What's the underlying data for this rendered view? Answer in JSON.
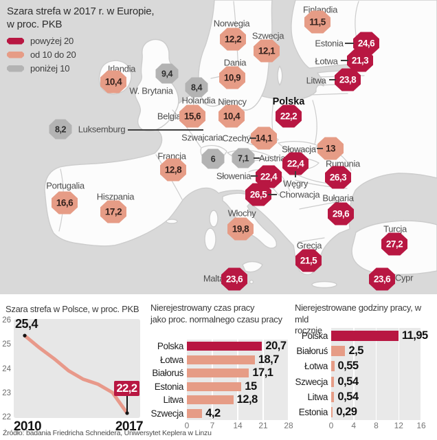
{
  "source": "Źródło: badania Friedricha Schneidera, Uniwersytet Keplera w Linzu",
  "colors": {
    "high": "#b81742",
    "mid": "#e69c86",
    "low": "#b3b3b3",
    "sea": "#d9d9d9",
    "land": "#fcfcfc",
    "plot_bg": "#e7e7e7",
    "line": "#e8998a"
  },
  "chart_data": [
    {
      "type": "map-values",
      "title": "Szara strefa w 2017 r. w Europie, w proc. PKB",
      "title_lines": [
        "Szara strefa w 2017 r. w Europie,",
        "w proc. PKB"
      ],
      "legend": [
        {
          "label": "powyżej 20",
          "tier": "high"
        },
        {
          "label": "od 10 do 20",
          "tier": "mid"
        },
        {
          "label": "poniżej 10",
          "tier": "low"
        }
      ],
      "countries": [
        {
          "name": "Finlandia",
          "value": "11,5",
          "tier": "mid"
        },
        {
          "name": "Norwegia",
          "value": "12,2",
          "tier": "mid"
        },
        {
          "name": "Szwecja",
          "value": "12,1",
          "tier": "mid"
        },
        {
          "name": "Estonia",
          "value": "24,6",
          "tier": "high"
        },
        {
          "name": "Łotwa",
          "value": "21,3",
          "tier": "high"
        },
        {
          "name": "Litwa",
          "value": "23,8",
          "tier": "high"
        },
        {
          "name": "Irlandia",
          "value": "10,4",
          "tier": "mid"
        },
        {
          "name": "W. Brytania",
          "value": "9,4",
          "tier": "low"
        },
        {
          "name": "Holandia",
          "value": "8,4",
          "tier": "low"
        },
        {
          "name": "Dania",
          "value": "10,9",
          "tier": "mid"
        },
        {
          "name": "Niemcy",
          "value": "10,4",
          "tier": "mid"
        },
        {
          "name": "Polska",
          "value": "22,2",
          "tier": "high",
          "bold": true
        },
        {
          "name": "Belgia",
          "value": "15,6",
          "tier": "mid"
        },
        {
          "name": "Luksemburg",
          "value": "8,2",
          "tier": "low"
        },
        {
          "name": "Szwajcaria",
          "value": "6",
          "tier": "low"
        },
        {
          "name": "Czechy",
          "value": "14,1",
          "tier": "mid"
        },
        {
          "name": "Austria",
          "value": "7,1",
          "tier": "low"
        },
        {
          "name": "Słowacja",
          "value": "13",
          "tier": "mid"
        },
        {
          "name": "Węgry",
          "value": "22,4",
          "tier": "high"
        },
        {
          "name": "Słowenia",
          "value": "22,4",
          "tier": "high"
        },
        {
          "name": "Chorwacja",
          "value": "26,5",
          "tier": "high"
        },
        {
          "name": "Rumunia",
          "value": "26,3",
          "tier": "high"
        },
        {
          "name": "Francja",
          "value": "12,8",
          "tier": "mid"
        },
        {
          "name": "Portugalia",
          "value": "16,6",
          "tier": "mid"
        },
        {
          "name": "Hiszpania",
          "value": "17,2",
          "tier": "mid"
        },
        {
          "name": "Włochy",
          "value": "19,8",
          "tier": "mid"
        },
        {
          "name": "Grecja",
          "value": "21,5",
          "tier": "high"
        },
        {
          "name": "Malta",
          "value": "23,6",
          "tier": "high"
        },
        {
          "name": "Bułgaria",
          "value": "29,6",
          "tier": "high"
        },
        {
          "name": "Turcja",
          "value": "27,2",
          "tier": "high"
        },
        {
          "name": "Cypr",
          "value": "23,6",
          "tier": "high"
        }
      ]
    },
    {
      "type": "line",
      "title": "Szara strefa w Polsce, w proc. PKB",
      "x": [
        2010,
        2011,
        2012,
        2013,
        2014,
        2015,
        2016,
        2017
      ],
      "values": [
        25.4,
        24.9,
        24.45,
        23.95,
        23.6,
        23.4,
        23.05,
        22.2
      ],
      "ylim": [
        22,
        26
      ],
      "y_ticks": [
        "26",
        "25",
        "24",
        "23",
        "22"
      ],
      "x_tick_labels": [
        "2010",
        "2017"
      ],
      "annotations": {
        "start": "25,4",
        "end": "22,2"
      }
    },
    {
      "type": "bar",
      "title": "Nierejestrowany czas pracy jako proc. normalnego czasu pracy",
      "title_lines": [
        "Nierejestrowany czas pracy",
        "jako proc. normalnego czasu pracy"
      ],
      "categories": [
        "Polska",
        "Łotwa",
        "Białoruś",
        "Estonia",
        "Litwa",
        "Szwecja"
      ],
      "values": [
        20.7,
        18.7,
        17.1,
        15,
        12.8,
        4.2
      ],
      "value_labels": [
        "20,7",
        "18,7",
        "17,1",
        "15",
        "12,8",
        "4,2"
      ],
      "xlim": [
        0,
        28
      ],
      "ticks": [
        0,
        7,
        14,
        21,
        28
      ],
      "highlight_index": 0
    },
    {
      "type": "bar",
      "title": "Nierejestrowane godziny pracy, w mld rocznie",
      "title_lines": [
        "Nierejestrowane godziny pracy, w mld",
        "rocznie"
      ],
      "categories": [
        "Polska",
        "Białoruś",
        "Łotwa",
        "Szwecja",
        "Litwa",
        "Estonia"
      ],
      "values": [
        11.95,
        2.5,
        0.55,
        0.54,
        0.54,
        0.29
      ],
      "value_labels": [
        "11,95",
        "2,5",
        "0,55",
        "0,54",
        "0,54",
        "0,29"
      ],
      "xlim": [
        0,
        16
      ],
      "ticks": [
        0,
        4,
        8,
        12,
        16
      ],
      "highlight_index": 0
    }
  ]
}
